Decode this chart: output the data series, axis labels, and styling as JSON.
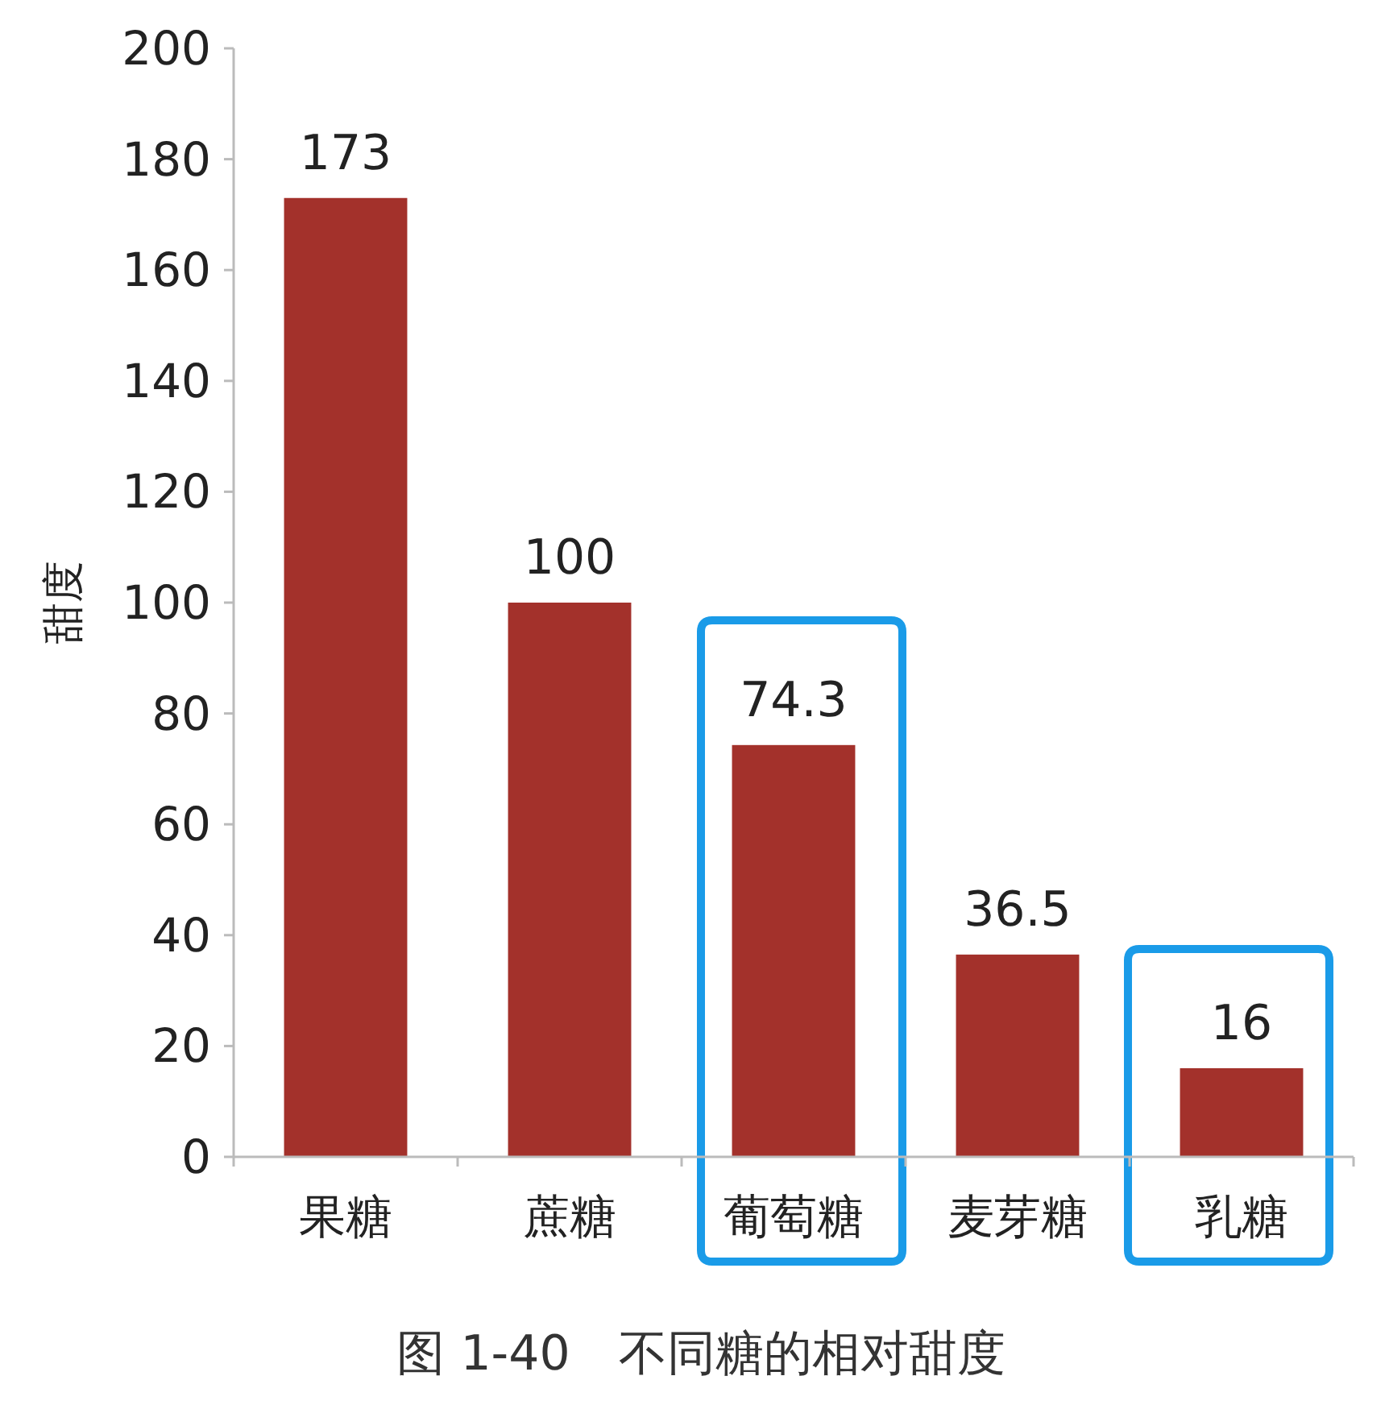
{
  "chart_data": {
    "type": "bar",
    "ylabel": "甜度",
    "categories": [
      "果糖",
      "蔗糖",
      "葡萄糖",
      "麦芽糖",
      "乳糖"
    ],
    "values": [
      173,
      100,
      74.3,
      36.5,
      16
    ],
    "color": "#a3312b",
    "data_labels": true,
    "ylim": [
      0,
      200
    ],
    "yticks": [
      0,
      20,
      40,
      60,
      80,
      100,
      120,
      140,
      160,
      180,
      200
    ],
    "grid": false,
    "annotations": [
      "图 1-40　不同糖的相对甜度"
    ]
  }
}
